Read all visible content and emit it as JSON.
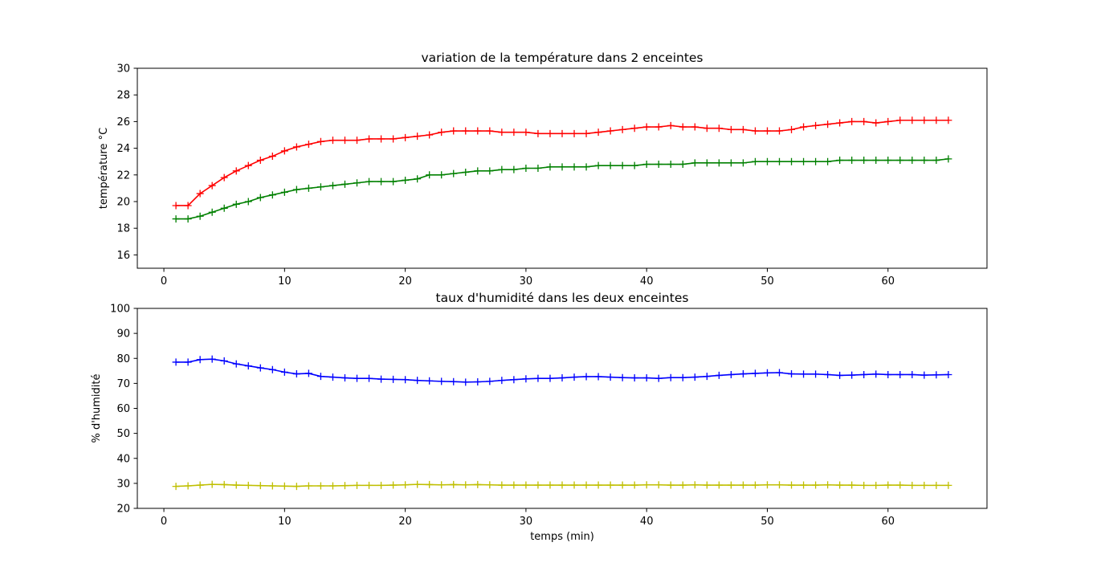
{
  "chart_data": [
    {
      "type": "line",
      "title": "variation de la température dans 2 enceintes",
      "xlabel": "",
      "ylabel": "température °C",
      "xlim": [
        -2.2,
        68.2
      ],
      "ylim": [
        15,
        30
      ],
      "xticks": [
        0,
        10,
        20,
        30,
        40,
        50,
        60
      ],
      "yticks": [
        16,
        18,
        20,
        22,
        24,
        26,
        28,
        30
      ],
      "grid": false,
      "x": [
        1,
        2,
        3,
        4,
        5,
        6,
        7,
        8,
        9,
        10,
        11,
        12,
        13,
        14,
        15,
        16,
        17,
        18,
        19,
        20,
        21,
        22,
        23,
        24,
        25,
        26,
        27,
        28,
        29,
        30,
        31,
        32,
        33,
        34,
        35,
        36,
        37,
        38,
        39,
        40,
        41,
        42,
        43,
        44,
        45,
        46,
        47,
        48,
        49,
        50,
        51,
        52,
        53,
        54,
        55,
        56,
        57,
        58,
        59,
        60,
        61,
        62,
        63,
        64,
        65
      ],
      "series": [
        {
          "color": "#ff0000",
          "marker": "+",
          "values": [
            19.7,
            19.7,
            20.6,
            21.2,
            21.8,
            22.3,
            22.7,
            23.1,
            23.4,
            23.8,
            24.1,
            24.3,
            24.5,
            24.6,
            24.6,
            24.6,
            24.7,
            24.7,
            24.7,
            24.8,
            24.9,
            25.0,
            25.2,
            25.3,
            25.3,
            25.3,
            25.3,
            25.2,
            25.2,
            25.2,
            25.1,
            25.1,
            25.1,
            25.1,
            25.1,
            25.2,
            25.3,
            25.4,
            25.5,
            25.6,
            25.6,
            25.7,
            25.6,
            25.6,
            25.5,
            25.5,
            25.4,
            25.4,
            25.3,
            25.3,
            25.3,
            25.4,
            25.6,
            25.7,
            25.8,
            25.9,
            26.0,
            26.0,
            25.9,
            26.0,
            26.1,
            26.1,
            26.1,
            26.1,
            26.1
          ]
        },
        {
          "color": "#008000",
          "marker": "+",
          "values": [
            18.7,
            18.7,
            18.9,
            19.2,
            19.5,
            19.8,
            20.0,
            20.3,
            20.5,
            20.7,
            20.9,
            21.0,
            21.1,
            21.2,
            21.3,
            21.4,
            21.5,
            21.5,
            21.5,
            21.6,
            21.7,
            22.0,
            22.0,
            22.1,
            22.2,
            22.3,
            22.3,
            22.4,
            22.4,
            22.5,
            22.5,
            22.6,
            22.6,
            22.6,
            22.6,
            22.7,
            22.7,
            22.7,
            22.7,
            22.8,
            22.8,
            22.8,
            22.8,
            22.9,
            22.9,
            22.9,
            22.9,
            22.9,
            23.0,
            23.0,
            23.0,
            23.0,
            23.0,
            23.0,
            23.0,
            23.1,
            23.1,
            23.1,
            23.1,
            23.1,
            23.1,
            23.1,
            23.1,
            23.1,
            23.2
          ]
        }
      ]
    },
    {
      "type": "line",
      "title": "taux d'humidité dans les deux enceintes",
      "xlabel": "temps (min)",
      "ylabel": "% d'humidité",
      "xlim": [
        -2.2,
        68.2
      ],
      "ylim": [
        20,
        100
      ],
      "xticks": [
        0,
        10,
        20,
        30,
        40,
        50,
        60
      ],
      "yticks": [
        20,
        30,
        40,
        50,
        60,
        70,
        80,
        90,
        100
      ],
      "grid": false,
      "x": [
        1,
        2,
        3,
        4,
        5,
        6,
        7,
        8,
        9,
        10,
        11,
        12,
        13,
        14,
        15,
        16,
        17,
        18,
        19,
        20,
        21,
        22,
        23,
        24,
        25,
        26,
        27,
        28,
        29,
        30,
        31,
        32,
        33,
        34,
        35,
        36,
        37,
        38,
        39,
        40,
        41,
        42,
        43,
        44,
        45,
        46,
        47,
        48,
        49,
        50,
        51,
        52,
        53,
        54,
        55,
        56,
        57,
        58,
        59,
        60,
        61,
        62,
        63,
        64,
        65
      ],
      "series": [
        {
          "color": "#0000ff",
          "marker": "+",
          "values": [
            78.5,
            78.5,
            79.5,
            79.7,
            79.0,
            77.8,
            77.0,
            76.2,
            75.5,
            74.5,
            73.8,
            74.0,
            72.8,
            72.5,
            72.2,
            72.0,
            72.0,
            71.7,
            71.6,
            71.5,
            71.2,
            71.0,
            70.8,
            70.7,
            70.5,
            70.6,
            70.8,
            71.2,
            71.5,
            71.8,
            72.0,
            72.0,
            72.2,
            72.5,
            72.7,
            72.7,
            72.5,
            72.3,
            72.2,
            72.2,
            72.0,
            72.3,
            72.3,
            72.5,
            72.8,
            73.2,
            73.5,
            73.8,
            74.0,
            74.2,
            74.3,
            73.8,
            73.7,
            73.7,
            73.5,
            73.2,
            73.3,
            73.5,
            73.7,
            73.5,
            73.5,
            73.5,
            73.3,
            73.4,
            73.5
          ]
        },
        {
          "color": "#bfbf00",
          "marker": "+",
          "values": [
            28.8,
            29.0,
            29.3,
            29.6,
            29.5,
            29.3,
            29.2,
            29.1,
            29.0,
            28.9,
            28.8,
            29.0,
            29.0,
            29.0,
            29.1,
            29.2,
            29.2,
            29.2,
            29.3,
            29.4,
            29.6,
            29.5,
            29.4,
            29.5,
            29.4,
            29.5,
            29.4,
            29.3,
            29.3,
            29.3,
            29.3,
            29.3,
            29.3,
            29.3,
            29.3,
            29.3,
            29.3,
            29.3,
            29.3,
            29.4,
            29.4,
            29.3,
            29.3,
            29.4,
            29.3,
            29.3,
            29.3,
            29.3,
            29.3,
            29.4,
            29.4,
            29.3,
            29.3,
            29.3,
            29.4,
            29.3,
            29.3,
            29.2,
            29.2,
            29.3,
            29.3,
            29.2,
            29.2,
            29.2,
            29.2
          ]
        }
      ]
    }
  ]
}
